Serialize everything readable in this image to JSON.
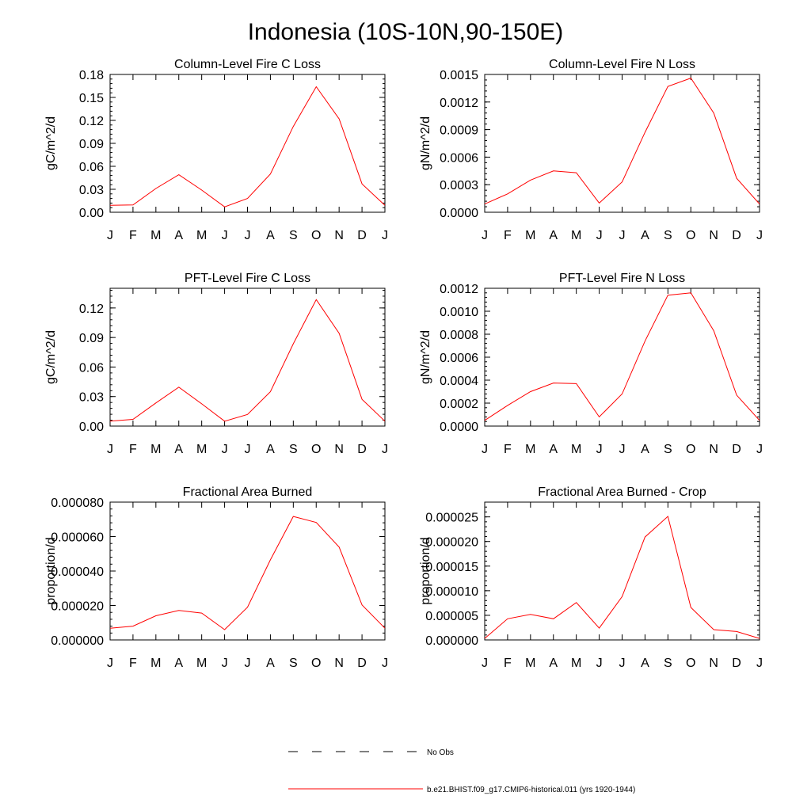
{
  "title": "Indonesia (10S-10N,90-150E)",
  "months": [
    "J",
    "F",
    "M",
    "A",
    "M",
    "J",
    "J",
    "A",
    "S",
    "O",
    "N",
    "D",
    "J"
  ],
  "colors": {
    "model_line": "#ff0000",
    "obs_line": "#000000",
    "axis": "#000000"
  },
  "legend": {
    "obs_label": "No Obs",
    "model_label": "b.e21.BHIST.f09_g17.CMIP6-historical.011 (yrs 1920-1944)"
  },
  "chart_data": [
    {
      "type": "line",
      "title": "Column-Level Fire C Loss",
      "ylabel": "gC/m^2/d",
      "ylim": [
        0,
        0.18
      ],
      "yticks": [
        "0.00",
        "0.03",
        "0.06",
        "0.09",
        "0.12",
        "0.15",
        "0.18"
      ],
      "series": [
        {
          "values": [
            0.009,
            0.0095,
            0.031,
            0.049,
            0.029,
            0.007,
            0.018,
            0.05,
            0.112,
            0.164,
            0.122,
            0.037,
            0.009
          ]
        }
      ]
    },
    {
      "type": "line",
      "title": "Column-Level Fire N Loss",
      "ylabel": "gN/m^2/d",
      "ylim": [
        0,
        0.0015
      ],
      "yticks": [
        "0.0000",
        "0.0003",
        "0.0006",
        "0.0009",
        "0.0012",
        "0.0015"
      ],
      "series": [
        {
          "values": [
            9e-05,
            0.0002,
            0.00035,
            0.00045,
            0.00043,
            0.0001,
            0.00033,
            0.00087,
            0.00137,
            0.00146,
            0.00108,
            0.00037,
            9e-05
          ]
        }
      ]
    },
    {
      "type": "line",
      "title": "PFT-Level Fire C Loss",
      "ylabel": "gC/m^2/d",
      "ylim": [
        0,
        0.14
      ],
      "yticks": [
        "0.00",
        "0.03",
        "0.06",
        "0.09",
        "0.12"
      ],
      "series": [
        {
          "values": [
            0.005,
            0.0068,
            0.0235,
            0.0395,
            0.0226,
            0.005,
            0.0118,
            0.0349,
            0.0836,
            0.1285,
            0.0943,
            0.0272,
            0.005
          ]
        }
      ]
    },
    {
      "type": "line",
      "title": "PFT-Level Fire N Loss",
      "ylabel": "gN/m^2/d",
      "ylim": [
        0,
        0.0012
      ],
      "yticks": [
        "0.0000",
        "0.0002",
        "0.0004",
        "0.0006",
        "0.0008",
        "0.0010",
        "0.0012"
      ],
      "series": [
        {
          "values": [
            5e-05,
            0.00018,
            0.0003,
            0.000375,
            0.00037,
            8e-05,
            0.00028,
            0.00074,
            0.00114,
            0.00116,
            0.00083,
            0.00027,
            5e-05
          ]
        }
      ]
    },
    {
      "type": "line",
      "title": "Fractional Area Burned",
      "ylabel": "proportion/d",
      "ylim": [
        0,
        8e-05
      ],
      "yticks": [
        "0.000000",
        "0.000020",
        "0.000040",
        "0.000060",
        "0.000080"
      ],
      "series": [
        {
          "values": [
            6.8e-06,
            8e-06,
            1.4e-05,
            1.71e-05,
            1.56e-05,
            6e-06,
            1.9e-05,
            4.65e-05,
            7.17e-05,
            6.82e-05,
            5.39e-05,
            2.03e-05,
            6.8e-06
          ]
        }
      ]
    },
    {
      "type": "line",
      "title": "Fractional Area Burned - Crop",
      "ylabel": "proportion/d",
      "ylim": [
        0,
        2.8e-05
      ],
      "yticks": [
        "0.000000",
        "0.000005",
        "0.000010",
        "0.000015",
        "0.000020",
        "0.000025"
      ],
      "series": [
        {
          "values": [
            3e-07,
            4.3e-06,
            5.2e-06,
            4.3e-06,
            7.6e-06,
            2.4e-06,
            8.8e-06,
            2.09e-05,
            2.51e-05,
            6.6e-06,
            2.1e-06,
            1.7e-06,
            3e-07
          ]
        }
      ]
    }
  ]
}
